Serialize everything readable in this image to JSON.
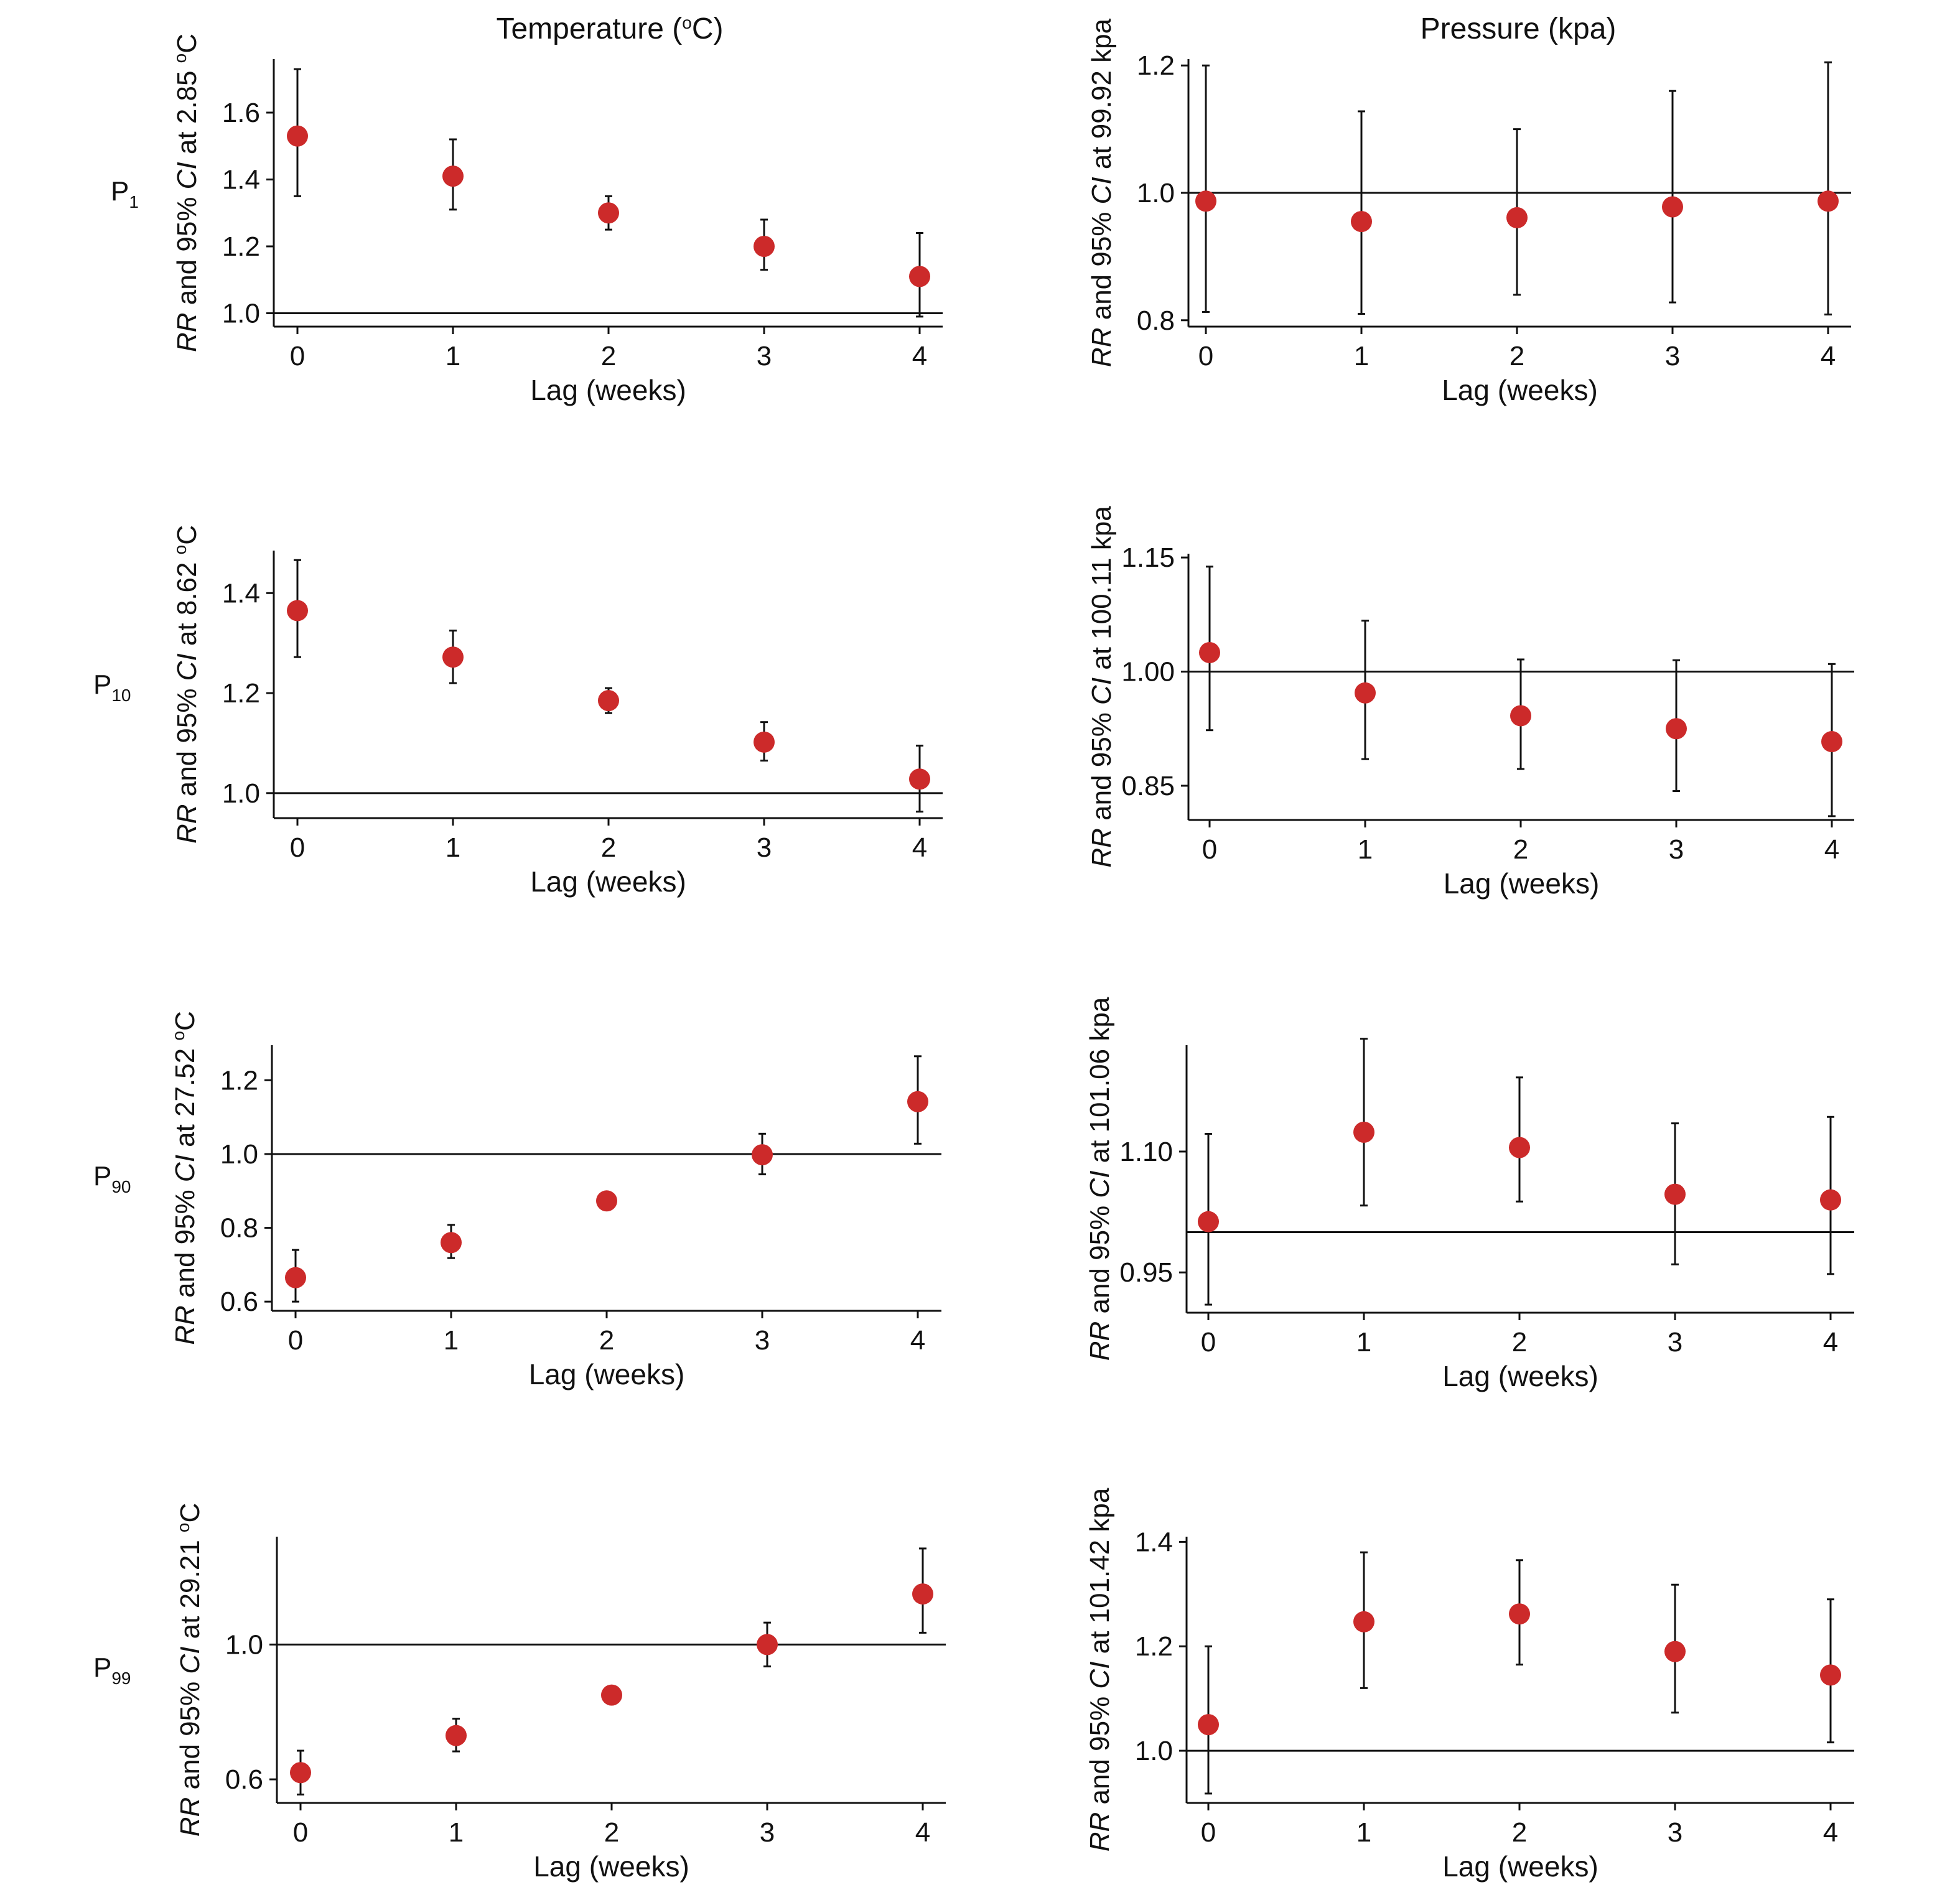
{
  "columns": [
    {
      "title": "Temperature (",
      "title_sup": "o",
      "title_tail": "C)"
    },
    {
      "title": "Pressure (kpa)"
    }
  ],
  "rows": [
    {
      "label": "P",
      "sub": "1"
    },
    {
      "label": "P",
      "sub": "10"
    },
    {
      "label": "P",
      "sub": "90"
    },
    {
      "label": "P",
      "sub": "99"
    }
  ],
  "colors": {
    "point": "#cc2a2a",
    "line": "#111111"
  },
  "chart_data": [
    {
      "id": "temp-p1",
      "type": "scatter",
      "xlabel": "Lag (weeks)",
      "ylabel": {
        "italic1": "RR",
        "mid": " and 95% ",
        "italic2": "CI",
        "tail": " at 2.85 ",
        "sup": "o",
        "unit": "C"
      },
      "x": [
        0,
        1,
        2,
        3,
        4
      ],
      "y": [
        1.53,
        1.41,
        1.3,
        1.2,
        1.11
      ],
      "lower": [
        1.35,
        1.31,
        1.25,
        1.13,
        0.99
      ],
      "upper": [
        1.73,
        1.52,
        1.35,
        1.28,
        1.24
      ],
      "ylim": [
        0.96,
        1.76
      ],
      "yticks": [
        1.0,
        1.2,
        1.4,
        1.6
      ],
      "yticklabels": [
        "1.0",
        "1.2",
        "1.4",
        "1.6"
      ],
      "ref": 1.0
    },
    {
      "id": "pres-p1",
      "type": "scatter",
      "xlabel": "Lag (weeks)",
      "ylabel": {
        "italic1": "RR",
        "mid": " and 95% ",
        "italic2": "CI",
        "tail": " at 99.92 kpa",
        "sup": "",
        "unit": ""
      },
      "x": [
        0,
        1,
        2,
        3,
        4
      ],
      "y": [
        0.987,
        0.955,
        0.961,
        0.978,
        0.987
      ],
      "lower": [
        0.813,
        0.81,
        0.84,
        0.828,
        0.809
      ],
      "upper": [
        1.2,
        1.128,
        1.1,
        1.16,
        1.205
      ],
      "ylim": [
        0.79,
        1.21
      ],
      "yticks": [
        0.8,
        1.0,
        1.2
      ],
      "yticklabels": [
        "0.8",
        "1.0",
        "1.2"
      ],
      "ref": 1.0
    },
    {
      "id": "temp-p10",
      "type": "scatter",
      "xlabel": "Lag (weeks)",
      "ylabel": {
        "italic1": "RR",
        "mid": " and 95% ",
        "italic2": "CI",
        "tail": " at 8.62 ",
        "sup": "o",
        "unit": "C"
      },
      "x": [
        0,
        1,
        2,
        3,
        4
      ],
      "y": [
        1.365,
        1.272,
        1.185,
        1.102,
        1.028
      ],
      "lower": [
        1.272,
        1.22,
        1.16,
        1.065,
        0.963
      ],
      "upper": [
        1.466,
        1.325,
        1.21,
        1.142,
        1.095
      ],
      "ylim": [
        0.95,
        1.485
      ],
      "yticks": [
        1.0,
        1.2,
        1.4
      ],
      "yticklabels": [
        "1.0",
        "1.2",
        "1.4"
      ],
      "ref": 1.0
    },
    {
      "id": "pres-p10",
      "type": "scatter",
      "xlabel": "Lag (weeks)",
      "ylabel": {
        "italic1": "RR",
        "mid": " and 95% ",
        "italic2": "CI",
        "tail": " at 100.11 kpa",
        "sup": "",
        "unit": ""
      },
      "x": [
        0,
        1,
        2,
        3,
        4
      ],
      "y": [
        1.025,
        0.972,
        0.942,
        0.925,
        0.908
      ],
      "lower": [
        0.923,
        0.885,
        0.872,
        0.843,
        0.81
      ],
      "upper": [
        1.138,
        1.067,
        1.016,
        1.015,
        1.01
      ],
      "ylim": [
        0.805,
        1.155
      ],
      "yticks": [
        0.85,
        1.0,
        1.15
      ],
      "yticklabels": [
        "0.85",
        "1.00",
        "1.15"
      ],
      "ref": 1.0
    },
    {
      "id": "temp-p90",
      "type": "scatter",
      "xlabel": "Lag (weeks)",
      "ylabel": {
        "italic1": "RR",
        "mid": " and 95% ",
        "italic2": "CI",
        "tail": " at 27.52 ",
        "sup": "o",
        "unit": "C"
      },
      "x": [
        0,
        1,
        2,
        3,
        4
      ],
      "y": [
        0.665,
        0.76,
        0.873,
        0.998,
        1.142
      ],
      "lower": [
        0.6,
        0.718,
        0.868,
        0.945,
        1.028
      ],
      "upper": [
        0.74,
        0.808,
        0.878,
        1.055,
        1.265
      ],
      "ylim": [
        0.575,
        1.295
      ],
      "yticks": [
        0.6,
        0.8,
        1.0,
        1.2
      ],
      "yticklabels": [
        "0.6",
        "0.8",
        "1.0",
        "1.2"
      ],
      "ref": 1.0
    },
    {
      "id": "pres-p90",
      "type": "scatter",
      "xlabel": "Lag (weeks)",
      "ylabel": {
        "italic1": "RR",
        "mid": " and 95% ",
        "italic2": "CI",
        "tail": " at 101.06 kpa",
        "sup": "",
        "unit": ""
      },
      "x": [
        0,
        1,
        2,
        3,
        4
      ],
      "y": [
        1.013,
        1.124,
        1.105,
        1.047,
        1.04
      ],
      "lower": [
        0.91,
        1.033,
        1.038,
        0.96,
        0.948
      ],
      "upper": [
        1.122,
        1.24,
        1.192,
        1.135,
        1.143
      ],
      "ylim": [
        0.9,
        1.232
      ],
      "yticks": [
        0.95,
        1.1
      ],
      "yticklabels": [
        "0.95",
        "1.10"
      ],
      "ref": 1.0
    },
    {
      "id": "temp-p99",
      "type": "scatter",
      "xlabel": "Lag (weeks)",
      "ylabel": {
        "italic1": "RR",
        "mid": " and 95% ",
        "italic2": "CI",
        "tail": " at 29.21 ",
        "sup": "o",
        "unit": "C"
      },
      "x": [
        0,
        1,
        2,
        3,
        4
      ],
      "y": [
        0.62,
        0.73,
        0.85,
        1.0,
        1.15
      ],
      "lower": [
        0.555,
        0.683,
        0.845,
        0.935,
        1.035
      ],
      "upper": [
        0.685,
        0.78,
        0.855,
        1.065,
        1.285
      ],
      "ylim": [
        0.53,
        1.32
      ],
      "yticks": [
        0.6,
        1.0
      ],
      "yticklabels": [
        "0.6",
        "1.0"
      ],
      "ref": 1.0
    },
    {
      "id": "pres-p99",
      "type": "scatter",
      "xlabel": "Lag (weeks)",
      "ylabel": {
        "italic1": "RR",
        "mid": " and 95% ",
        "italic2": "CI",
        "tail": " at 101.42 kpa",
        "sup": "",
        "unit": ""
      },
      "x": [
        0,
        1,
        2,
        3,
        4
      ],
      "y": [
        1.05,
        1.247,
        1.262,
        1.19,
        1.145
      ],
      "lower": [
        0.918,
        1.12,
        1.165,
        1.073,
        1.016
      ],
      "upper": [
        1.2,
        1.38,
        1.365,
        1.318,
        1.29
      ],
      "ylim": [
        0.9,
        1.41
      ],
      "yticks": [
        1.0,
        1.2,
        1.4
      ],
      "yticklabels": [
        "1.0",
        "1.2",
        "1.4"
      ],
      "ref": 1.0
    }
  ]
}
